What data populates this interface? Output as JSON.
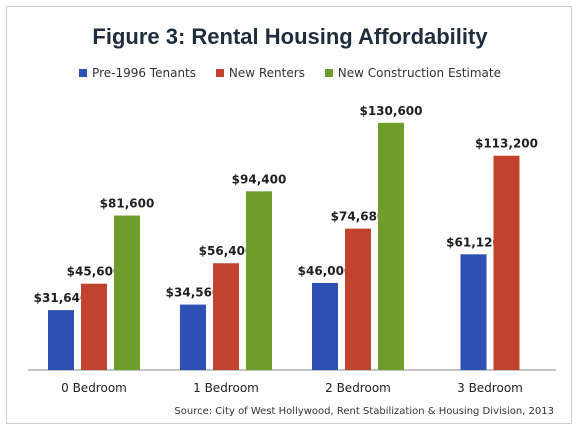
{
  "colors": {
    "pre1996": "#2e4fb3",
    "newRenters": "#c1432f",
    "newConstruction": "#6f9d2c",
    "axis": "#8a8a8a",
    "text": "#1f1f1f"
  },
  "legend": [
    {
      "label": "Pre-1996 Tenants",
      "color": "#2e4fb3"
    },
    {
      "label": "New Renters",
      "color": "#c1432f"
    },
    {
      "label": "New Construction Estimate",
      "color": "#6f9d2c"
    }
  ],
  "chart_data": {
    "type": "bar",
    "title": "Figure 3: Rental Housing Affordability",
    "categories": [
      "0 Bedroom",
      "1 Bedroom",
      "2 Bedroom",
      "3 Bedroom"
    ],
    "series": [
      {
        "name": "Pre-1996 Tenants",
        "values": [
          31640,
          34560,
          46000,
          61120
        ],
        "labels": [
          "$31,640",
          "$34,560",
          "$46,000",
          "$61,120"
        ]
      },
      {
        "name": "New Renters",
        "values": [
          45600,
          56400,
          74680,
          113200
        ],
        "labels": [
          "$45,600",
          "$56,400",
          "$74,680",
          "$113,200"
        ]
      },
      {
        "name": "New Construction Estimate",
        "values": [
          81600,
          94400,
          130600,
          null
        ],
        "labels": [
          "$81,600",
          "$94,400",
          "$130,600",
          ""
        ]
      }
    ],
    "ylim": [
      0,
      140000
    ],
    "grid": false,
    "legend_position": "top",
    "source": "Source: City of West Hollywood, Rent Stabilization & Housing Division, 2013"
  }
}
